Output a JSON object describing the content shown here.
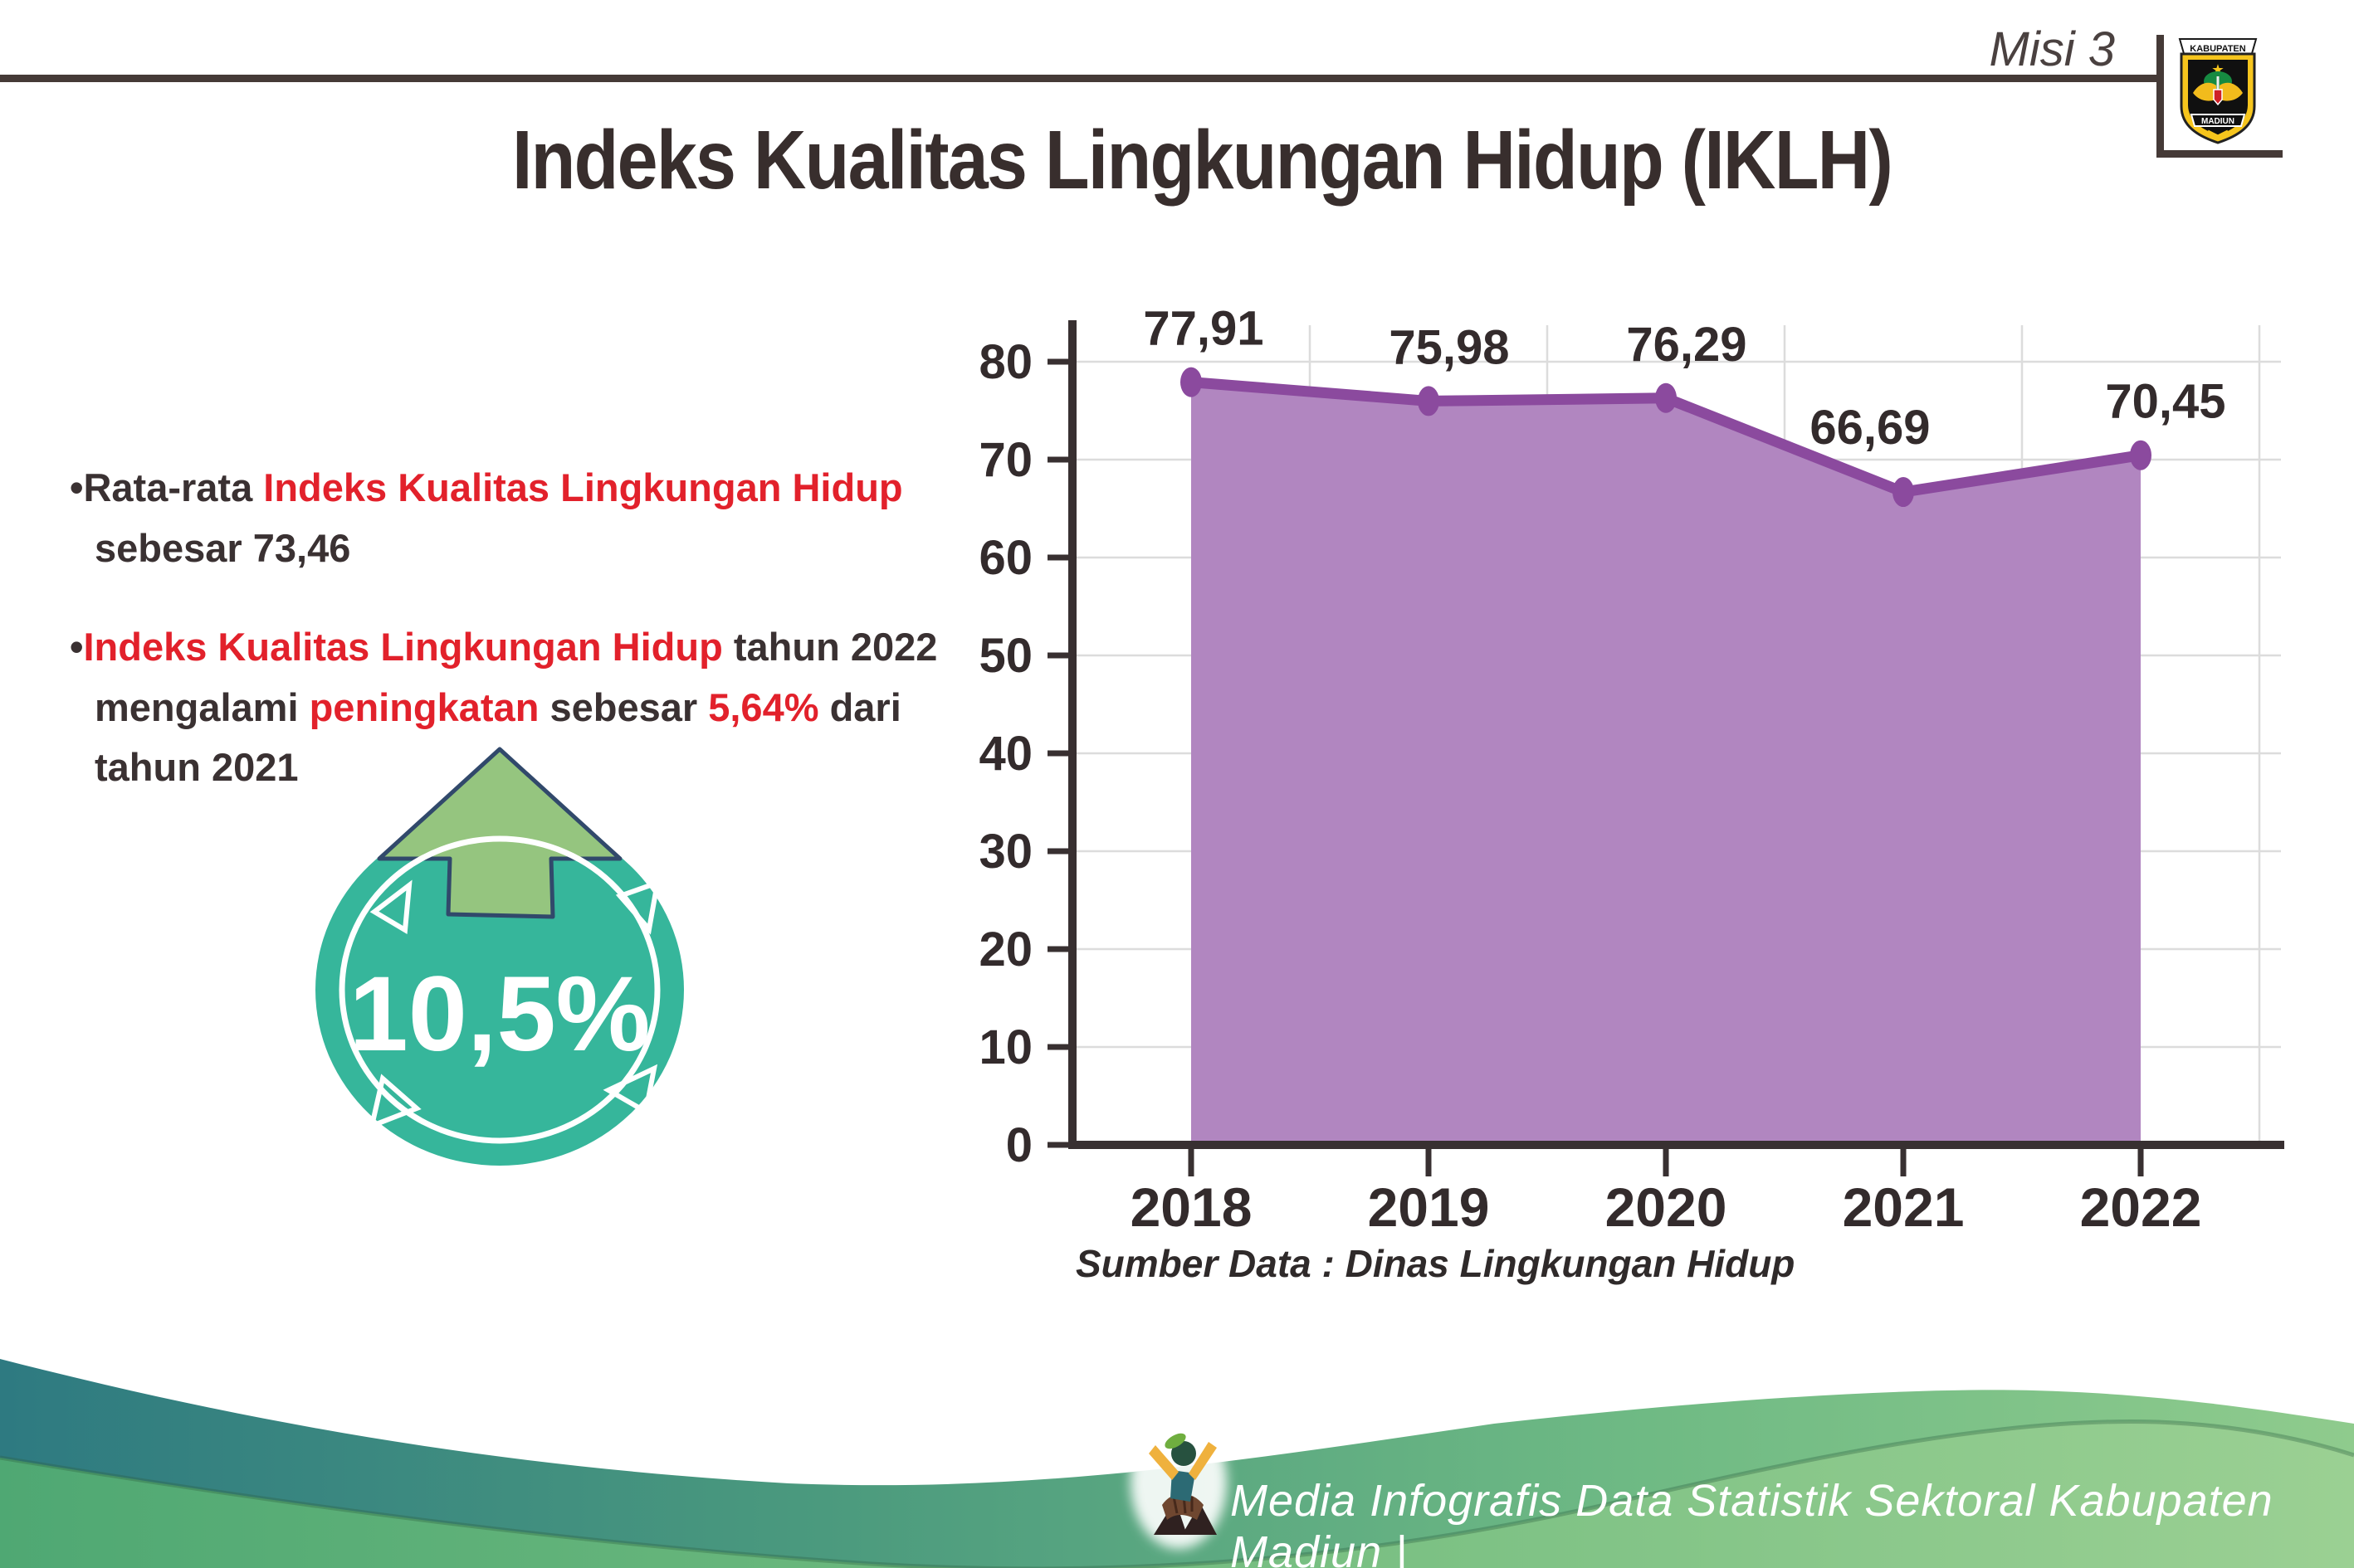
{
  "header": {
    "misi": "Misi 3"
  },
  "logo": {
    "top": "KABUPATEN",
    "bottom": "MADIUN"
  },
  "title": "Indeks Kualitas Lingkungan Hidup (IKLH)",
  "bullets": {
    "dot": "•",
    "b1": {
      "l1": {
        "s1": "Rata-rata ",
        "s2": "Indeks Kualitas Lingkungan Hidup"
      },
      "l2": "sebesar 73,46"
    },
    "b2": {
      "l1": {
        "s1": "Indeks Kualitas Lingkungan Hidup",
        "s2": " tahun 2022"
      },
      "l2": {
        "s1": "mengalami ",
        "s2": "peningkatan",
        "s3": " sebesar ",
        "s4": "5,64%",
        "s5": " dari"
      },
      "l3": "tahun 2021"
    }
  },
  "badge": {
    "value": "10,5%"
  },
  "chart_data": {
    "type": "area",
    "categories": [
      "2018",
      "2019",
      "2020",
      "2021",
      "2022"
    ],
    "values": [
      77.91,
      75.98,
      76.29,
      66.69,
      70.45
    ],
    "value_labels": [
      "77,91",
      "75,98",
      "76,29",
      "66,69",
      "70,45"
    ],
    "title": "",
    "xlabel": "",
    "ylabel": "",
    "ylim": [
      0,
      80
    ],
    "ytick_step": 10,
    "grid": true,
    "legend": false,
    "source": "Sumber Data : Dinas Lingkungan Hidup"
  },
  "footer": {
    "text": "Media Infografis Data Statistik Sektoral Kabupaten Madiun |"
  },
  "colors": {
    "red": "#e2212b",
    "dark_text": "#3a3132",
    "area_fill": "#b186c0",
    "line": "#8b4a9e",
    "gridline": "#dcdcdc",
    "axis": "#383031",
    "badge_teal": "#36b69b",
    "arrow_green": "#95c57f",
    "footer_teal": "#2e7a81",
    "footer_green": "#74bd80"
  }
}
